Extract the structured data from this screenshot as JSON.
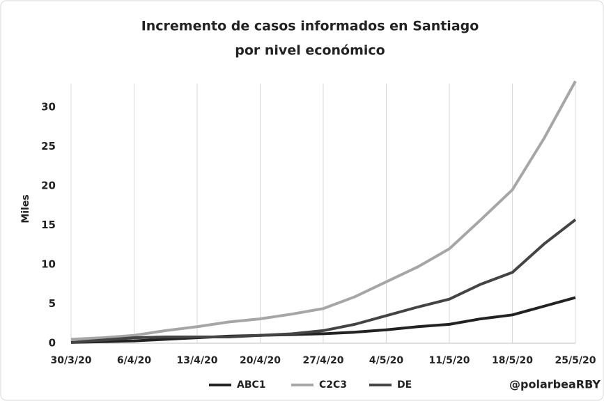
{
  "chart_data": {
    "type": "line",
    "title": "Incremento de casos informados en Santiago",
    "subtitle": "por nivel económico",
    "y_label": "Miles",
    "annotation": "@polarbeaRBY",
    "categories": [
      "30/3/20",
      null,
      "6/4/20",
      null,
      "13/4/20",
      null,
      "20/4/20",
      null,
      "27/4/20",
      null,
      "4/5/20",
      null,
      "11/5/20",
      null,
      "18/5/20",
      null,
      "25/5/20"
    ],
    "series": [
      {
        "name": "ABC1",
        "color": "#222222",
        "values": [
          0.1,
          0.2,
          0.3,
          0.5,
          0.7,
          0.9,
          1.0,
          1.1,
          1.2,
          1.4,
          1.7,
          2.1,
          2.4,
          3.1,
          3.6,
          4.7,
          5.8
        ]
      },
      {
        "name": "C2C3",
        "color": "#a6a6a6",
        "values": [
          0.5,
          0.7,
          1.0,
          1.6,
          2.1,
          2.7,
          3.1,
          3.7,
          4.4,
          5.9,
          7.8,
          9.7,
          12.0,
          15.7,
          19.5,
          26.0,
          33.3
        ]
      },
      {
        "name": "DE",
        "color": "#444444",
        "values": [
          0.1,
          0.4,
          0.7,
          0.8,
          0.8,
          0.8,
          1.0,
          1.2,
          1.6,
          2.4,
          3.5,
          4.6,
          5.6,
          7.5,
          9.0,
          12.6,
          15.7
        ]
      }
    ],
    "ylim": [
      0,
      33
    ],
    "yticks": [
      0,
      5,
      10,
      15,
      20,
      25,
      30
    ],
    "grid": true,
    "legend": "bottom"
  }
}
